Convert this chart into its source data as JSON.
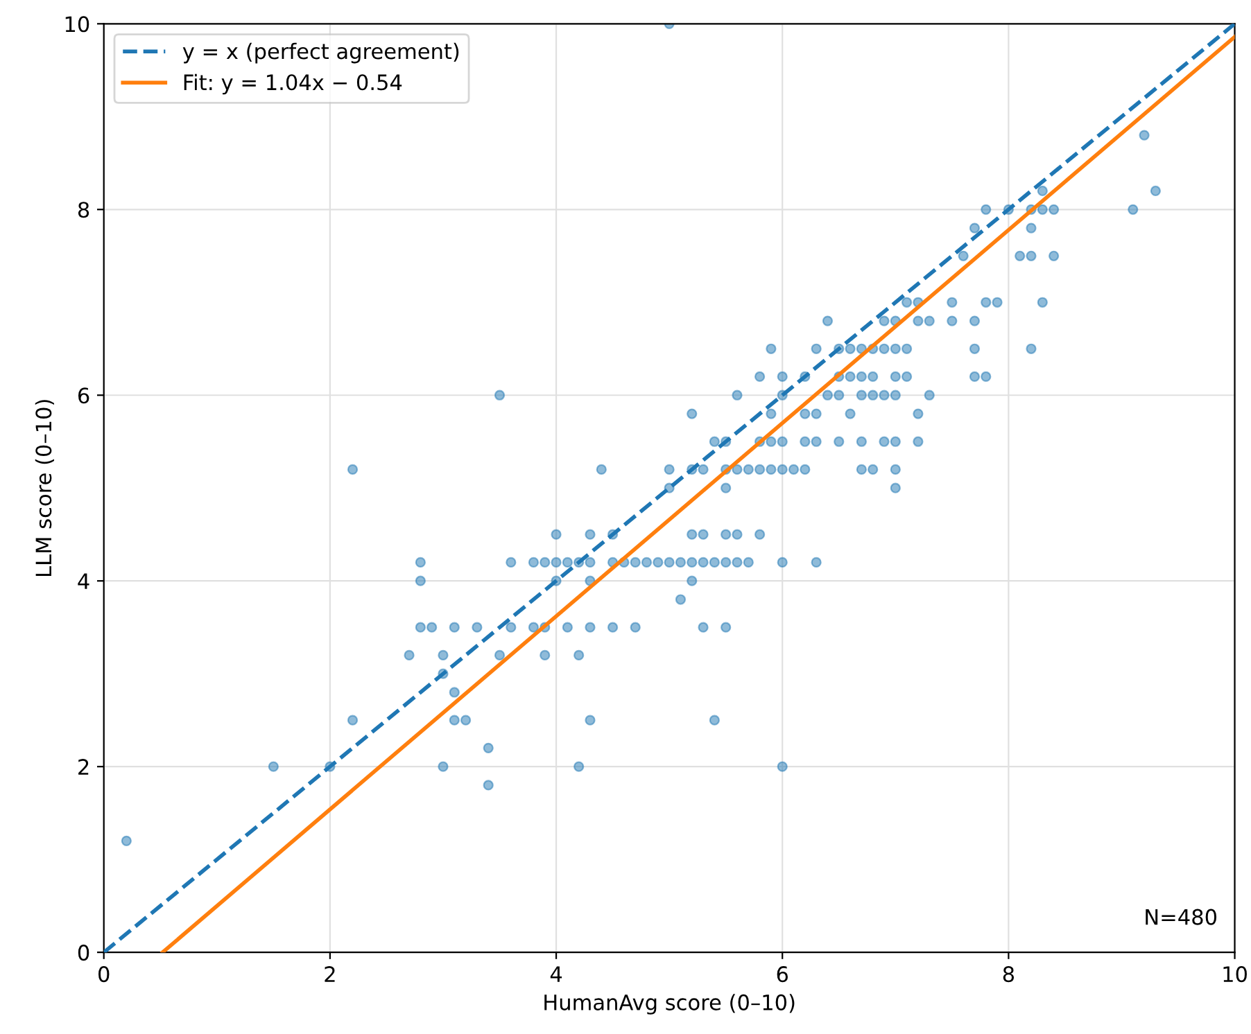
{
  "chart_data": {
    "type": "scatter",
    "xlabel": "HumanAvg score (0–10)",
    "ylabel": "LLM score (0–10)",
    "xlim": [
      0,
      10
    ],
    "ylim": [
      0,
      10
    ],
    "xticks": [
      0,
      2,
      4,
      6,
      8,
      10
    ],
    "yticks": [
      0,
      2,
      4,
      6,
      8,
      10
    ],
    "grid": true,
    "legend": "top left",
    "annotations": [
      "N=480"
    ],
    "series": [
      {
        "type": "line",
        "name": "y = x (perfect agreement)",
        "color": "#1f77b4",
        "line_style": "dashed",
        "marker": "none",
        "x": [
          0,
          10
        ],
        "values": [
          0,
          10
        ]
      },
      {
        "type": "line",
        "name": "Fit: y = 1.04x − 0.54",
        "color": "#ff7f0e",
        "line_style": "solid",
        "marker": "none",
        "x": [
          0.52,
          10
        ],
        "values": [
          0.0,
          9.86
        ]
      },
      {
        "color": "#1f77b4",
        "marker": "circle",
        "x": [
          5.0,
          9.2,
          8.3,
          9.3,
          7.8,
          8.0,
          8.2,
          8.3,
          8.4,
          9.1,
          7.7,
          8.2,
          7.6,
          8.1,
          8.2,
          8.4,
          7.1,
          7.2,
          7.5,
          7.8,
          7.9,
          8.3,
          6.4,
          6.9,
          7.0,
          7.2,
          7.3,
          7.5,
          7.7,
          5.9,
          6.3,
          6.5,
          6.6,
          6.7,
          6.8,
          6.9,
          7.0,
          7.1,
          7.7,
          8.2,
          5.8,
          6.0,
          6.2,
          6.5,
          6.6,
          6.7,
          6.8,
          7.0,
          7.1,
          7.7,
          7.8,
          3.5,
          5.6,
          6.0,
          6.4,
          6.5,
          6.7,
          6.8,
          6.9,
          7.0,
          7.3,
          5.2,
          5.9,
          6.2,
          6.3,
          6.6,
          7.2,
          5.4,
          5.5,
          5.8,
          5.9,
          6.0,
          6.2,
          6.3,
          6.5,
          6.7,
          6.9,
          7.0,
          7.2,
          2.2,
          4.4,
          5.0,
          5.2,
          5.3,
          5.5,
          5.6,
          5.7,
          5.8,
          5.9,
          6.0,
          6.1,
          6.2,
          6.7,
          6.8,
          7.0,
          5.0,
          5.5,
          7.0,
          4.0,
          4.3,
          4.5,
          5.2,
          5.3,
          5.5,
          5.6,
          5.8,
          2.8,
          3.6,
          3.8,
          3.9,
          4.0,
          4.1,
          4.2,
          4.3,
          4.5,
          4.6,
          4.7,
          4.8,
          4.9,
          5.0,
          5.1,
          5.2,
          5.3,
          5.4,
          5.5,
          5.6,
          5.7,
          6.0,
          6.3,
          2.8,
          4.0,
          4.3,
          5.2,
          5.1,
          2.8,
          2.9,
          3.1,
          3.3,
          3.6,
          3.8,
          3.9,
          4.1,
          4.3,
          4.5,
          4.7,
          5.3,
          5.5,
          2.7,
          3.0,
          3.5,
          3.9,
          4.2,
          3.0,
          3.1,
          2.2,
          3.1,
          3.2,
          4.3,
          5.4,
          3.4,
          1.5,
          2.0,
          3.0,
          4.2,
          6.0,
          3.4,
          0.2
        ],
        "values": [
          10.0,
          8.8,
          8.2,
          8.2,
          8.0,
          8.0,
          8.0,
          8.0,
          8.0,
          8.0,
          7.8,
          7.8,
          7.5,
          7.5,
          7.5,
          7.5,
          7.0,
          7.0,
          7.0,
          7.0,
          7.0,
          7.0,
          6.8,
          6.8,
          6.8,
          6.8,
          6.8,
          6.8,
          6.8,
          6.5,
          6.5,
          6.5,
          6.5,
          6.5,
          6.5,
          6.5,
          6.5,
          6.5,
          6.5,
          6.5,
          6.2,
          6.2,
          6.2,
          6.2,
          6.2,
          6.2,
          6.2,
          6.2,
          6.2,
          6.2,
          6.2,
          6.0,
          6.0,
          6.0,
          6.0,
          6.0,
          6.0,
          6.0,
          6.0,
          6.0,
          6.0,
          5.8,
          5.8,
          5.8,
          5.8,
          5.8,
          5.8,
          5.5,
          5.5,
          5.5,
          5.5,
          5.5,
          5.5,
          5.5,
          5.5,
          5.5,
          5.5,
          5.5,
          5.5,
          5.2,
          5.2,
          5.2,
          5.2,
          5.2,
          5.2,
          5.2,
          5.2,
          5.2,
          5.2,
          5.2,
          5.2,
          5.2,
          5.2,
          5.2,
          5.2,
          5.0,
          5.0,
          5.0,
          4.5,
          4.5,
          4.5,
          4.5,
          4.5,
          4.5,
          4.5,
          4.5,
          4.2,
          4.2,
          4.2,
          4.2,
          4.2,
          4.2,
          4.2,
          4.2,
          4.2,
          4.2,
          4.2,
          4.2,
          4.2,
          4.2,
          4.2,
          4.2,
          4.2,
          4.2,
          4.2,
          4.2,
          4.2,
          4.2,
          4.2,
          4.0,
          4.0,
          4.0,
          4.0,
          3.8,
          3.5,
          3.5,
          3.5,
          3.5,
          3.5,
          3.5,
          3.5,
          3.5,
          3.5,
          3.5,
          3.5,
          3.5,
          3.5,
          3.2,
          3.2,
          3.2,
          3.2,
          3.2,
          3.0,
          2.8,
          2.5,
          2.5,
          2.5,
          2.5,
          2.5,
          2.2,
          2.0,
          2.0,
          2.0,
          2.0,
          2.0,
          1.8,
          1.2
        ]
      }
    ]
  }
}
